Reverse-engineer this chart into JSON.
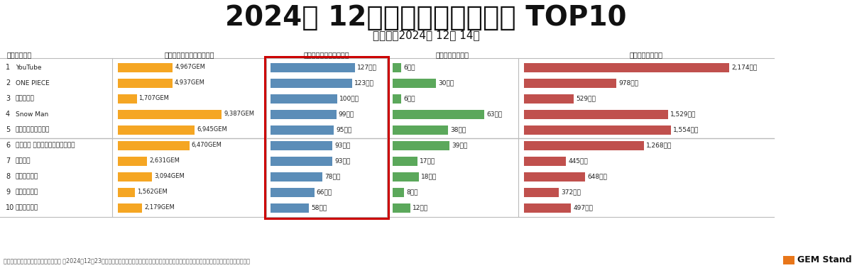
{
  "title": "2024年 12月の推しファン人数 TOP10",
  "subtitle": "実査日：2024年 12月 14日",
  "footer": "出典：推しエンタメブランドスコープ 　2024年12月23日更新時点のデータに基づく。名寄せ辞書のアップデートにより、最新値と異なる場合があります",
  "gem_text": "GEM Standard",
  "col_header0": "人数での順位",
  "col_header1": "推しエンタメブランド価値",
  "col_header2": "推しファン人数（万人）",
  "col_header3": "支出金額（億円）",
  "col_header4": "接触日数（万日）",
  "categories": [
    "YouTube",
    "ONE PIECE",
    "ダンダダン",
    "Snow Man",
    "ポケットモンスター",
    "ちいかわ なんか小さくてかわい．",
    "鬼滅の刃",
    "名探偵コナン",
    "『推しの子』",
    "ブルーロック"
  ],
  "brand_values": [
    4967,
    4937,
    1707,
    9387,
    6945,
    6470,
    2631,
    3094,
    1562,
    2179
  ],
  "brand_labels": [
    "4,967GEM",
    "4,937GEM",
    "1,707GEM",
    "9,387GEM",
    "6,945GEM",
    "6,470GEM",
    "2,631GEM",
    "3,094GEM",
    "1,562GEM",
    "2,179GEM"
  ],
  "fan_values": [
    127,
    123,
    100,
    99,
    95,
    93,
    93,
    78,
    66,
    58
  ],
  "fan_labels": [
    "127万人",
    "123万人",
    "100万人",
    "99万人",
    "95万人",
    "93万人",
    "93万人",
    "78万人",
    "66万人",
    "58万人"
  ],
  "spending_values": [
    6,
    30,
    6,
    63,
    38,
    39,
    17,
    18,
    8,
    12
  ],
  "spending_labels": [
    "6億円",
    "30億円",
    "6億円",
    "63億円",
    "38億円",
    "39億円",
    "17億円",
    "18億円",
    "8億円",
    "12億円"
  ],
  "contact_values": [
    2174,
    978,
    529,
    1529,
    1554,
    1268,
    445,
    648,
    372,
    497
  ],
  "contact_labels": [
    "2,174万日",
    "978万日",
    "529万日",
    "1,529万日",
    "1,554万日",
    "1,268万日",
    "445万日",
    "648万日",
    "372万日",
    "497万日"
  ],
  "brand_color": "#F5A623",
  "fan_color": "#5B8DB8",
  "spending_color": "#5BA85B",
  "contact_color": "#C0504D",
  "highlight_border_color": "#CC0000",
  "bg_color": "#FFFFFF",
  "divider_color": "#BBBBBB",
  "text_color": "#222222",
  "title_color": "#111111",
  "gem_orange": "#E8761A",
  "footer_color": "#555555"
}
